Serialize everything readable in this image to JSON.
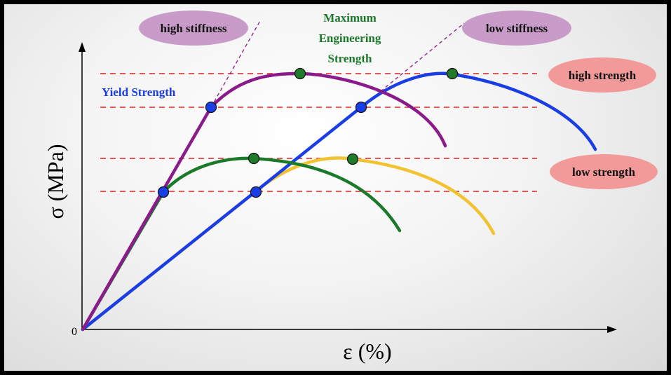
{
  "diagram": {
    "origin_label": "0",
    "x_axis_label": "ε (%)",
    "y_axis_label": "σ  (MPa)",
    "annotations": {
      "high_stiffness": "high stiffness",
      "low_stiffness": "low stiffness",
      "max_strength_line1": "Maximum",
      "max_strength_line2": "Engineering",
      "max_strength_line3": "Strength",
      "yield_strength": "Yield Strength",
      "high_strength": "high strength",
      "low_strength": "low strength"
    },
    "curves": [
      {
        "name": "high stiffness, high strength",
        "color": "#8b1a8b"
      },
      {
        "name": "high stiffness, low strength",
        "color": "#1a7a2a"
      },
      {
        "name": "low stiffness, high strength",
        "color": "#1a3ee6"
      },
      {
        "name": "low stiffness, low strength",
        "color": "#f2c230"
      }
    ],
    "colors": {
      "yield_point": "#1a3ee6",
      "max_point": "#1f7a2a",
      "guide_line": "#e02020",
      "stiffness_bubble": "#c89bc8",
      "strength_bubble": "#f29a9a",
      "yield_text": "#1a3ee6",
      "max_text": "#1a7a2a"
    }
  }
}
